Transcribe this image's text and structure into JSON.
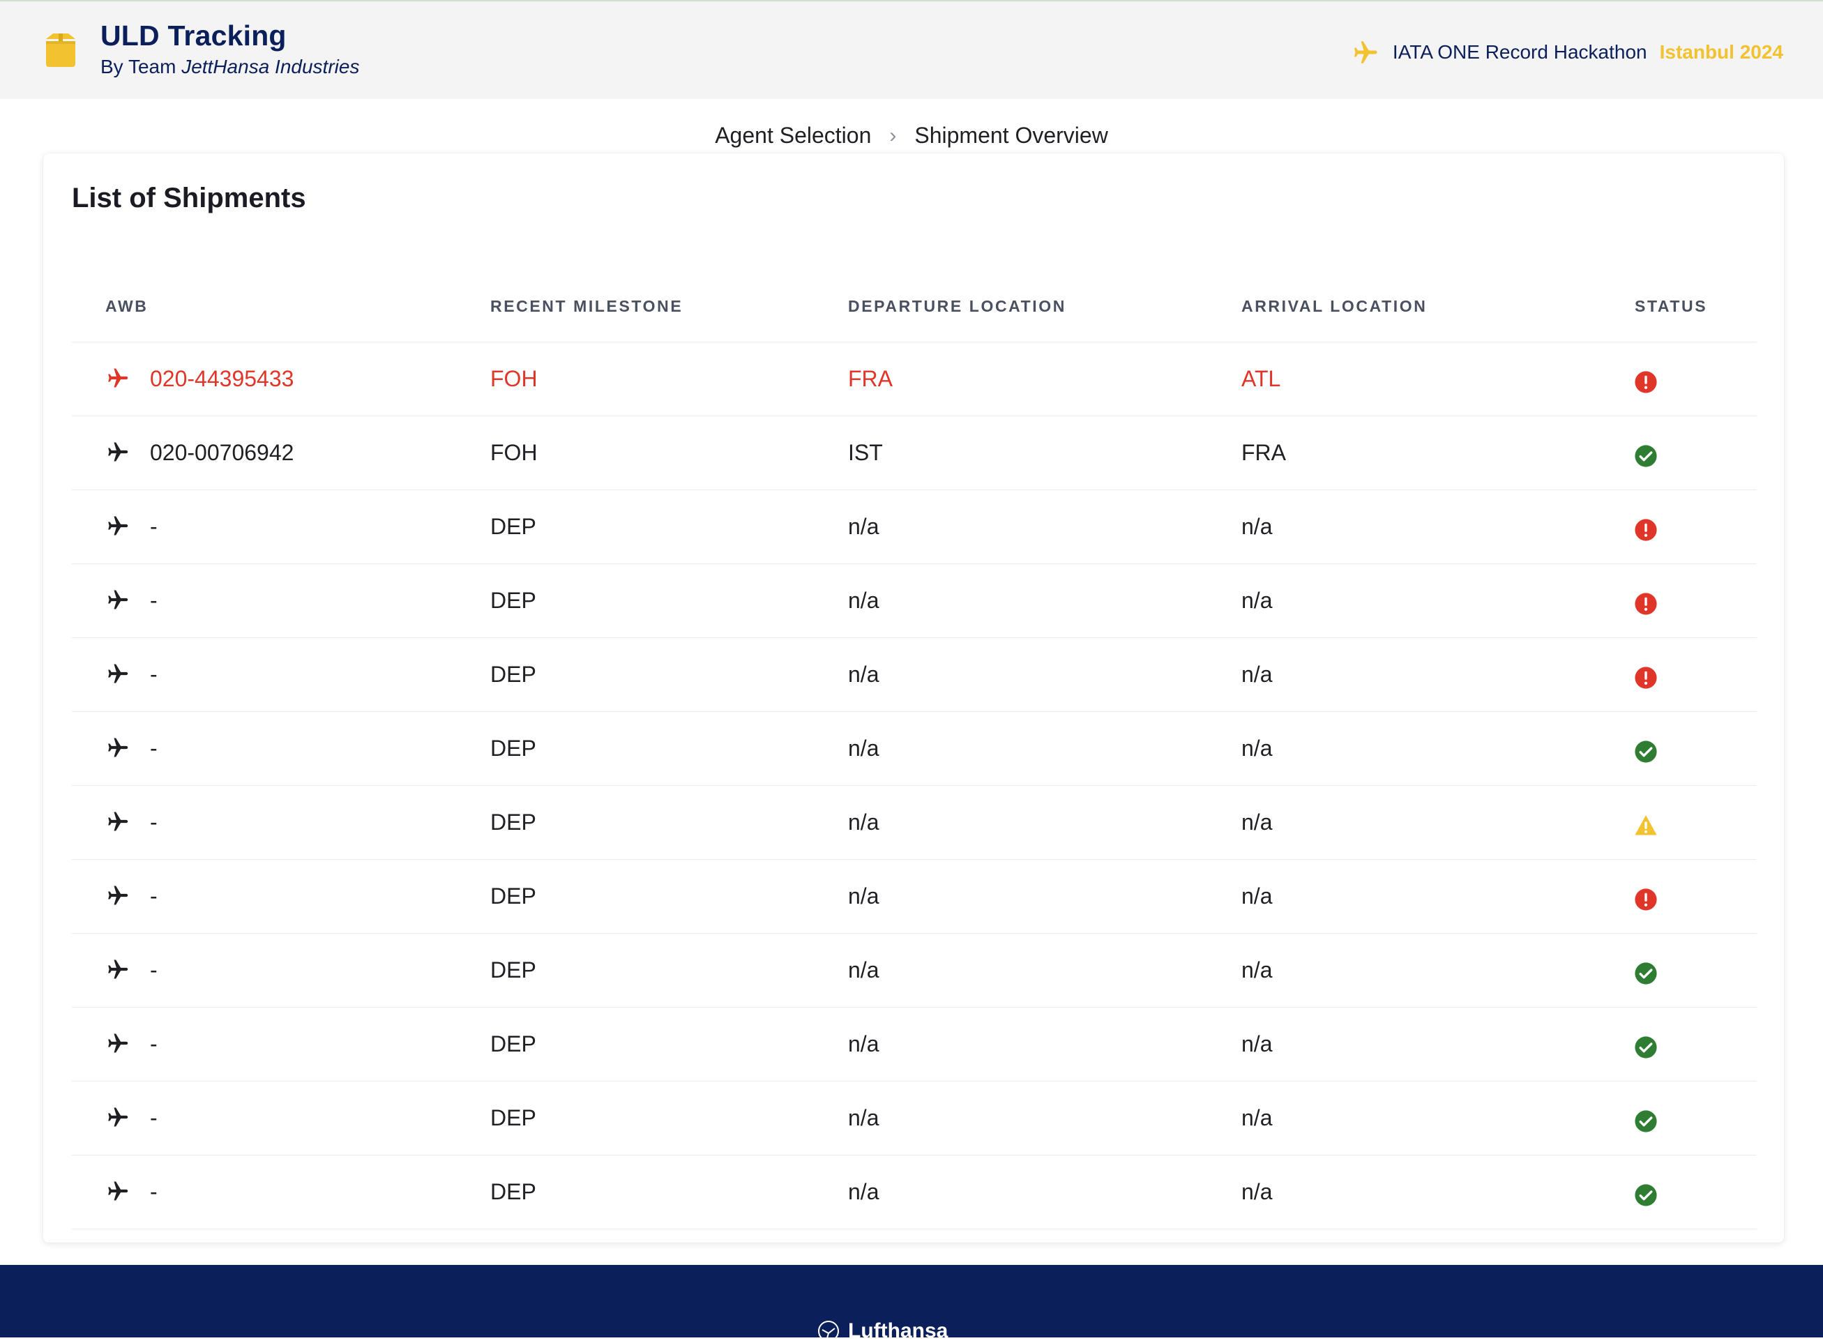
{
  "header": {
    "title": "ULD Tracking",
    "subtitle_prefix": "By Team ",
    "team": "JettHansa Industries",
    "event_name": "IATA ONE Record Hackathon",
    "event_city": "Istanbul 2024",
    "icons": {
      "brand": "package-icon",
      "event": "airplane-icon"
    },
    "accent_color": "#f2c230",
    "brand_color": "#0b1f5a"
  },
  "breadcrumb": [
    "Agent Selection",
    "Shipment Overview"
  ],
  "card": {
    "title": "List of Shipments",
    "columns": [
      "AWB",
      "RECENT MILESTONE",
      "DEPARTURE LOCATION",
      "ARRIVAL LOCATION",
      "STATUS"
    ],
    "rows": [
      {
        "awb": "020-44395433",
        "milestone": "FOH",
        "departure": "FRA",
        "arrival": "ATL",
        "status": "error",
        "highlight": true
      },
      {
        "awb": "020-00706942",
        "milestone": "FOH",
        "departure": "IST",
        "arrival": "FRA",
        "status": "ok",
        "highlight": false
      },
      {
        "awb": "-",
        "milestone": "DEP",
        "departure": "n/a",
        "arrival": "n/a",
        "status": "error",
        "highlight": false
      },
      {
        "awb": "-",
        "milestone": "DEP",
        "departure": "n/a",
        "arrival": "n/a",
        "status": "error",
        "highlight": false
      },
      {
        "awb": "-",
        "milestone": "DEP",
        "departure": "n/a",
        "arrival": "n/a",
        "status": "error",
        "highlight": false
      },
      {
        "awb": "-",
        "milestone": "DEP",
        "departure": "n/a",
        "arrival": "n/a",
        "status": "ok",
        "highlight": false
      },
      {
        "awb": "-",
        "milestone": "DEP",
        "departure": "n/a",
        "arrival": "n/a",
        "status": "warning",
        "highlight": false
      },
      {
        "awb": "-",
        "milestone": "DEP",
        "departure": "n/a",
        "arrival": "n/a",
        "status": "error",
        "highlight": false
      },
      {
        "awb": "-",
        "milestone": "DEP",
        "departure": "n/a",
        "arrival": "n/a",
        "status": "ok",
        "highlight": false
      },
      {
        "awb": "-",
        "milestone": "DEP",
        "departure": "n/a",
        "arrival": "n/a",
        "status": "ok",
        "highlight": false
      },
      {
        "awb": "-",
        "milestone": "DEP",
        "departure": "n/a",
        "arrival": "n/a",
        "status": "ok",
        "highlight": false
      },
      {
        "awb": "-",
        "milestone": "DEP",
        "departure": "n/a",
        "arrival": "n/a",
        "status": "ok",
        "highlight": false
      }
    ],
    "status_colors": {
      "error": "#e0362a",
      "ok": "#2e7d32",
      "warning": "#f2c230"
    }
  },
  "footer": {
    "brand": "Lufthansa",
    "icon": "crane-logo-icon"
  }
}
